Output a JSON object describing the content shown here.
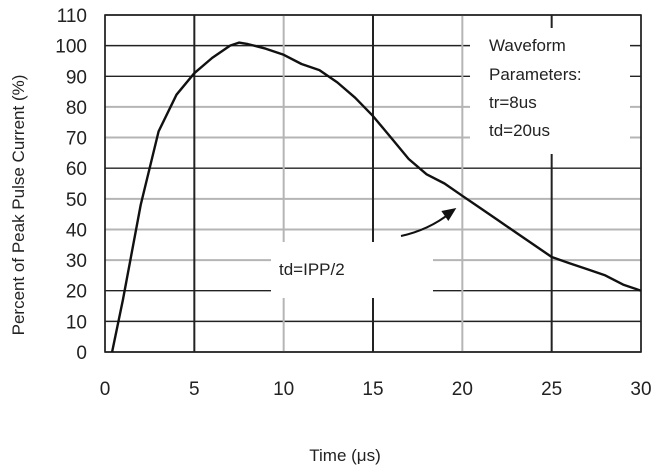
{
  "chart_data": {
    "type": "line",
    "xlabel": "Time (μs)",
    "ylabel": "Percent of Peak Pulse Current (%)",
    "xlim": [
      0,
      30
    ],
    "ylim": [
      0,
      110
    ],
    "x_ticks": [
      0,
      5,
      10,
      15,
      20,
      25,
      30
    ],
    "y_ticks": [
      0,
      10,
      20,
      30,
      40,
      50,
      60,
      70,
      80,
      90,
      100,
      110
    ],
    "grid": true,
    "series": [
      {
        "x": [
          0.4,
          1,
          2,
          3,
          4,
          5,
          6,
          7,
          7.5,
          8,
          9,
          10,
          11,
          12,
          13,
          14,
          15,
          16,
          17,
          18,
          19,
          20,
          21,
          22,
          23,
          24,
          25,
          26,
          27,
          28,
          29,
          30
        ],
        "values": [
          0,
          17,
          48,
          72,
          84,
          91,
          96,
          100,
          101,
          100.5,
          99,
          97,
          94,
          92,
          88,
          83,
          77,
          70,
          63,
          58,
          55,
          51,
          47,
          43,
          39,
          35,
          31,
          29,
          27,
          25,
          22,
          20
        ]
      }
    ],
    "annotations": {
      "params_title": "Waveform",
      "params_line2": "Parameters:",
      "tr": "tr=8us",
      "td": "td=20us",
      "formula": "td=IPP/2"
    },
    "arrow_target": {
      "x": 20,
      "y": 48
    },
    "colors": {
      "line": "#111111",
      "grid_dark": "#222222",
      "grid_light": "#b5b5b5",
      "text": "#222222"
    }
  }
}
